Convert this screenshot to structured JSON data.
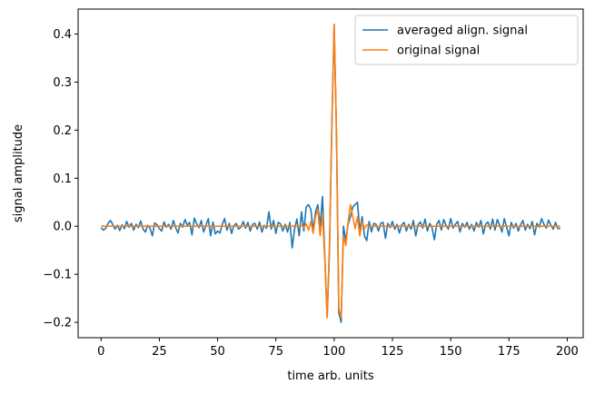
{
  "chart_data": {
    "type": "line",
    "xlabel": "time arb. units",
    "ylabel": "signal amplitude",
    "x": [
      0,
      1,
      2,
      3,
      4,
      5,
      6,
      7,
      8,
      9,
      10,
      11,
      12,
      13,
      14,
      15,
      16,
      17,
      18,
      19,
      20,
      21,
      22,
      23,
      24,
      25,
      26,
      27,
      28,
      29,
      30,
      31,
      32,
      33,
      34,
      35,
      36,
      37,
      38,
      39,
      40,
      41,
      42,
      43,
      44,
      45,
      46,
      47,
      48,
      49,
      50,
      51,
      52,
      53,
      54,
      55,
      56,
      57,
      58,
      59,
      60,
      61,
      62,
      63,
      64,
      65,
      66,
      67,
      68,
      69,
      70,
      71,
      72,
      73,
      74,
      75,
      76,
      77,
      78,
      79,
      80,
      81,
      82,
      83,
      84,
      85,
      86,
      87,
      88,
      89,
      90,
      91,
      92,
      93,
      94,
      95,
      96,
      97,
      98,
      99,
      100,
      101,
      102,
      103,
      104,
      105,
      106,
      107,
      108,
      109,
      110,
      111,
      112,
      113,
      114,
      115,
      116,
      117,
      118,
      119,
      120,
      121,
      122,
      123,
      124,
      125,
      126,
      127,
      128,
      129,
      130,
      131,
      132,
      133,
      134,
      135,
      136,
      137,
      138,
      139,
      140,
      141,
      142,
      143,
      144,
      145,
      146,
      147,
      148,
      149,
      150,
      151,
      152,
      153,
      154,
      155,
      156,
      157,
      158,
      159,
      160,
      161,
      162,
      163,
      164,
      165,
      166,
      167,
      168,
      169,
      170,
      171,
      172,
      173,
      174,
      175,
      176,
      177,
      178,
      179,
      180,
      181,
      182,
      183,
      184,
      185,
      186,
      187,
      188,
      189,
      190,
      191,
      192,
      193,
      194,
      195,
      196,
      197
    ],
    "series": [
      {
        "name": "averaged align. signal",
        "color": "#1f77b4",
        "values": [
          -0.003,
          -0.008,
          -0.004,
          0.006,
          0.012,
          0.004,
          -0.006,
          0.002,
          -0.009,
          0.003,
          -0.005,
          0.01,
          -0.002,
          0.006,
          -0.008,
          0.004,
          -0.003,
          0.011,
          -0.006,
          -0.012,
          0.002,
          -0.004,
          -0.02,
          0.007,
          0.003,
          -0.005,
          -0.01,
          0.009,
          -0.002,
          0.004,
          -0.006,
          0.012,
          -0.003,
          -0.014,
          0.006,
          -0.002,
          0.014,
          0.002,
          0.008,
          -0.018,
          0.017,
          0.005,
          -0.003,
          0.012,
          -0.012,
          0.002,
          0.016,
          -0.02,
          0.009,
          -0.016,
          -0.01,
          -0.014,
          0.004,
          0.016,
          -0.008,
          0.006,
          -0.015,
          0.001,
          0.006,
          -0.006,
          -0.002,
          0.01,
          -0.004,
          0.008,
          -0.01,
          0.004,
          0.006,
          -0.006,
          0.009,
          -0.012,
          0.002,
          -0.004,
          0.03,
          -0.006,
          0.012,
          -0.015,
          0.008,
          0.005,
          -0.01,
          0.004,
          -0.012,
          0.008,
          -0.045,
          -0.006,
          0.015,
          -0.02,
          0.03,
          -0.01,
          0.04,
          0.045,
          0.035,
          -0.01,
          0.03,
          0.045,
          0.0,
          0.062,
          -0.065,
          -0.19,
          -0.05,
          0.21,
          0.42,
          0.19,
          -0.18,
          -0.2,
          0.0,
          -0.03,
          0.005,
          0.02,
          0.04,
          0.045,
          0.05,
          -0.01,
          0.02,
          -0.02,
          -0.03,
          0.01,
          -0.012,
          0.006,
          0.004,
          -0.01,
          0.006,
          0.008,
          -0.025,
          0.006,
          -0.003,
          0.01,
          -0.006,
          0.004,
          -0.014,
          0.003,
          0.008,
          -0.01,
          0.004,
          -0.006,
          0.012,
          -0.02,
          0.003,
          0.009,
          -0.004,
          0.015,
          -0.01,
          0.006,
          -0.003,
          -0.028,
          0.004,
          0.012,
          -0.008,
          0.014,
          0.002,
          -0.006,
          0.016,
          -0.004,
          0.004,
          0.01,
          -0.012,
          0.006,
          -0.002,
          0.008,
          -0.006,
          0.004,
          -0.01,
          0.008,
          -0.002,
          0.012,
          -0.016,
          0.004,
          0.009,
          -0.006,
          0.015,
          -0.008,
          0.014,
          0.002,
          -0.012,
          0.016,
          -0.002,
          -0.02,
          0.008,
          -0.004,
          0.006,
          -0.01,
          0.003,
          0.012,
          -0.008,
          0.004,
          -0.005,
          0.01,
          -0.018,
          0.006,
          -0.002,
          0.016,
          0.004,
          -0.004,
          0.013,
          0.002,
          -0.006,
          0.008,
          -0.005,
          -0.004
        ]
      },
      {
        "name": "original signal",
        "color": "#ff7f0e",
        "values": [
          0,
          0,
          0,
          0,
          0,
          0,
          0,
          0,
          0,
          0,
          0,
          0,
          0,
          0,
          0,
          0,
          0,
          0,
          0,
          0,
          0,
          0,
          0,
          0,
          0,
          0,
          0,
          0,
          0,
          0,
          0,
          0,
          0,
          0,
          0,
          0,
          0,
          0,
          0,
          0,
          0,
          0,
          0,
          0,
          0,
          0,
          0,
          0,
          0,
          0,
          0,
          0,
          0,
          0,
          0,
          0,
          0,
          0,
          0,
          0,
          0,
          0,
          0,
          0,
          0,
          0,
          0,
          0,
          0,
          0,
          0,
          0,
          0,
          0,
          0,
          0,
          0,
          0,
          0,
          0,
          0,
          0,
          0,
          0,
          0,
          0,
          0.002,
          -0.003,
          0.005,
          -0.008,
          0.01,
          -0.015,
          0.02,
          0.035,
          -0.02,
          0.025,
          -0.07,
          -0.19,
          -0.04,
          0.2,
          0.42,
          0.2,
          -0.17,
          -0.19,
          -0.02,
          -0.04,
          0.01,
          0.045,
          0.02,
          -0.005,
          0.02,
          -0.02,
          0.01,
          -0.005,
          0.003,
          0,
          0,
          0,
          0,
          0,
          0,
          0,
          0,
          0,
          0,
          0,
          0,
          0,
          0,
          0,
          0,
          0,
          0,
          0,
          0,
          0,
          0,
          0,
          0,
          0,
          0,
          0,
          0,
          0,
          0,
          0,
          0,
          0,
          0,
          0,
          0,
          0,
          0,
          0,
          0,
          0,
          0,
          0,
          0,
          0,
          0,
          0,
          0,
          0,
          0,
          0,
          0,
          0,
          0,
          0,
          0,
          0,
          0,
          0,
          0,
          0,
          0,
          0,
          0,
          0,
          0,
          0,
          0,
          0,
          0,
          0,
          0,
          0,
          0,
          0,
          0,
          0,
          0,
          0,
          0,
          0,
          0,
          0
        ]
      }
    ],
    "xlim": [
      -9.85,
      206.85
    ],
    "ylim": [
      -0.232,
      0.452
    ],
    "xticks": [
      0,
      25,
      50,
      75,
      100,
      125,
      150,
      175,
      200
    ],
    "yticks": [
      {
        "value": -0.2,
        "label": "−0.2"
      },
      {
        "value": -0.1,
        "label": "−0.1"
      },
      {
        "value": 0,
        "label": "0.0"
      },
      {
        "value": 0.1,
        "label": "0.1"
      },
      {
        "value": 0.2,
        "label": "0.2"
      },
      {
        "value": 0.3,
        "label": "0.3"
      },
      {
        "value": 0.4,
        "label": "0.4"
      }
    ],
    "legend": "upper right"
  }
}
